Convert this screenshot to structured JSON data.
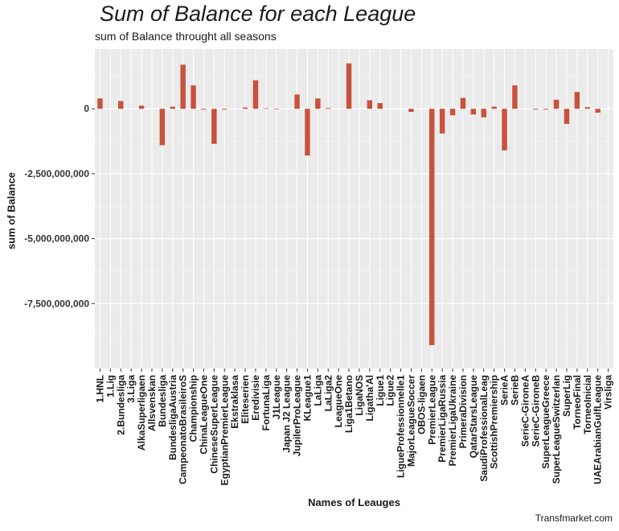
{
  "chart_data": {
    "type": "bar",
    "title": "Sum of Balance for each League",
    "subtitle": "sum of Balance throught all seasons",
    "xlabel": "Names of Leauges",
    "ylabel": "sum of Balance",
    "caption": "Transfmarket.com",
    "bar_color": "#c8523d",
    "panel_color": "#ebebeb",
    "grid": true,
    "ylim": [
      -10000000000,
      2300000000
    ],
    "y_ticks": [
      0,
      -2500000000,
      -5000000000,
      -7500000000
    ],
    "y_tick_labels": [
      "0",
      "-2,500,000,000",
      "-5,000,000,000",
      "-7,500,000,000"
    ],
    "categories": [
      "1.HNL",
      "1.Lig",
      "2.Bundesliga",
      "3.Liga",
      "AlkaSuperligaen",
      "Allsvenskan",
      "Bundesliga",
      "BundesligaAustria",
      "CampeonatoBrasileiroS",
      "Championship",
      "ChinaLeagueOne",
      "ChineseSuperLeague",
      "EgyptianPremierLeague",
      "Ekstraklasa",
      "Eliteserien",
      "Eredivisie",
      "FortunaLiga",
      "J1League",
      "Japan J2 League",
      "JupilerProLeague",
      "KLeague1",
      "LaLiga",
      "LaLiga2",
      "LeagueOne",
      "Liga1Betano",
      "LigaNOS",
      "Ligatha'Al",
      "Ligue1",
      "Ligue2",
      "LigueProfessionnelle1",
      "MajorLeagueSoccer",
      "OBOS-ligaen",
      "PremierLeague",
      "PremierLigaRussia",
      "PremierLigaUkraine",
      "PrimeraDivision",
      "QatarStarsLeague",
      "SaudiProfessionalLeag",
      "ScottishPremiership",
      "SerieA",
      "SerieB",
      "SerieC-GironeA",
      "SerieC-GironeB",
      "SuperLeagueGreece",
      "SuperLeagueSwitzerlan",
      "SuperLig",
      "TorneoFinal",
      "TorneoInicial",
      "UAEArabianGulfLeague",
      "Virsliga"
    ],
    "values": [
      400000000,
      0,
      300000000,
      0,
      120000000,
      0,
      -1400000000,
      80000000,
      1700000000,
      900000000,
      -30000000,
      -1350000000,
      -30000000,
      0,
      50000000,
      1100000000,
      20000000,
      -20000000,
      0,
      550000000,
      -1800000000,
      400000000,
      30000000,
      0,
      1750000000,
      0,
      330000000,
      220000000,
      0,
      0,
      -120000000,
      0,
      -9100000000,
      -950000000,
      -250000000,
      420000000,
      -220000000,
      -330000000,
      80000000,
      -1600000000,
      900000000,
      0,
      -30000000,
      -30000000,
      350000000,
      -580000000,
      650000000,
      60000000,
      -150000000,
      0
    ]
  }
}
